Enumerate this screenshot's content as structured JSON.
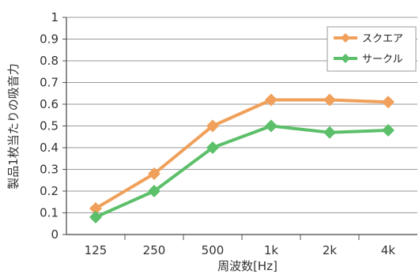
{
  "chart_data": {
    "type": "line",
    "title": "",
    "xlabel": "周波数[Hz]",
    "ylabel": "製品1枚当たりの吸音力",
    "categories": [
      "125",
      "250",
      "500",
      "1k",
      "2k",
      "4k"
    ],
    "ylim": [
      0,
      1
    ],
    "yticks": [
      "0",
      "0.1",
      "0.2",
      "0.3",
      "0.4",
      "0.5",
      "0.6",
      "0.7",
      "0.8",
      "0.9",
      "1"
    ],
    "grid": true,
    "legend_position": "top-right",
    "series": [
      {
        "name": "スクエア",
        "color": "#f0a05a",
        "values": [
          0.12,
          0.28,
          0.5,
          0.62,
          0.62,
          0.61
        ]
      },
      {
        "name": "サークル",
        "color": "#5cbf6a",
        "values": [
          0.08,
          0.2,
          0.4,
          0.5,
          0.47,
          0.48
        ]
      }
    ]
  }
}
